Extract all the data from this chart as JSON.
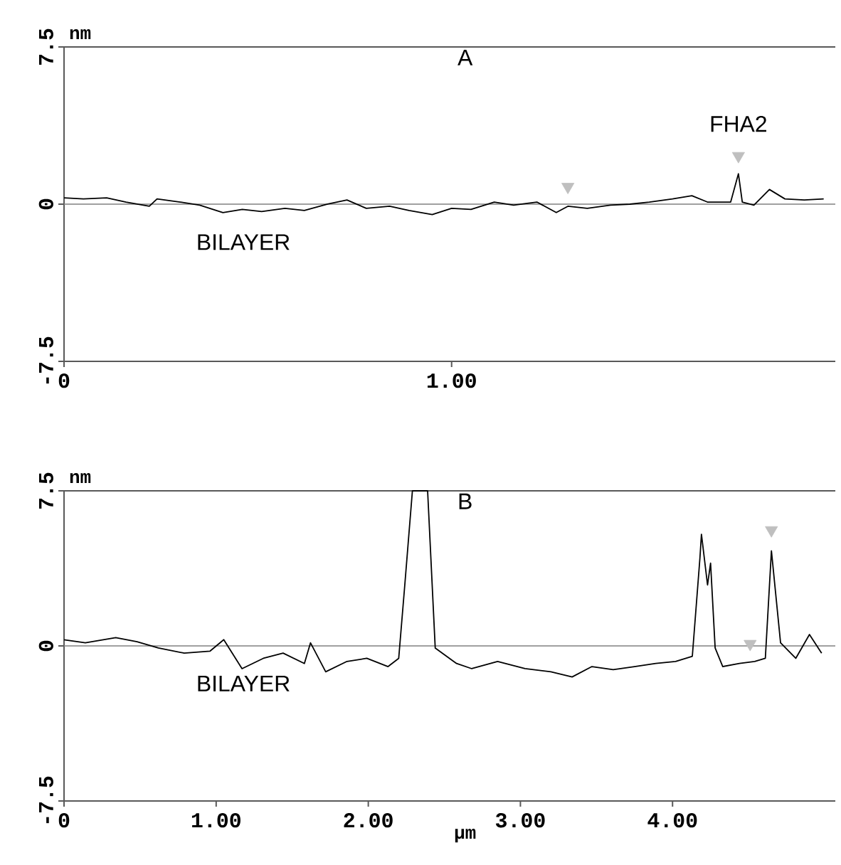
{
  "chart_data": [
    {
      "type": "line",
      "title": "A",
      "ylabel": "nm",
      "xlim": [
        0,
        1.99
      ],
      "ylim": [
        -7.5,
        7.5
      ],
      "xticks": [
        0,
        {
          "value": 1,
          "label": "1.00"
        }
      ],
      "yticks": [
        -7.5,
        0,
        7.5
      ],
      "grid": false,
      "ref_lines": [
        {
          "axis": "y",
          "value": 0,
          "color": "#808080"
        }
      ],
      "annotations": [
        {
          "text": "FHA2",
          "x": 1.74,
          "y": 1.45
        },
        "BILAYER"
      ],
      "series": [
        {
          "color": "#000000",
          "x": [
            0,
            0.05,
            0.11,
            0.16,
            0.22,
            0.24,
            0.3,
            0.35,
            0.41,
            0.46,
            0.51,
            0.57,
            0.62,
            0.68,
            0.73,
            0.78,
            0.84,
            0.89,
            0.95,
            1.0,
            1.05,
            1.11,
            1.16,
            1.22,
            1.27,
            1.3,
            1.35,
            1.41,
            1.46,
            1.51,
            1.57,
            1.62,
            1.66,
            1.72,
            1.74,
            1.75,
            1.78,
            1.82,
            1.86,
            1.91,
            1.96
          ],
          "values": [
            0.3,
            0.25,
            0.3,
            0.1,
            -0.1,
            0.25,
            0.1,
            -0.05,
            -0.4,
            -0.25,
            -0.35,
            -0.2,
            -0.3,
            0,
            0.2,
            -0.2,
            -0.1,
            -0.3,
            -0.5,
            -0.2,
            -0.25,
            0.1,
            -0.05,
            0.1,
            -0.4,
            -0.1,
            -0.2,
            -0.05,
            0,
            0.1,
            0.25,
            0.4,
            0.1,
            0.1,
            1.45,
            0.1,
            -0.05,
            0.7,
            0.25,
            0.2,
            0.25
          ]
        },
        {
          "type": "scatter",
          "color": "#bfbfbf",
          "marker": "triangle",
          "x": [
            1.3,
            1.74
          ],
          "values": [
            0.83,
            2.3
          ]
        }
      ]
    },
    {
      "type": "line",
      "title": "B",
      "xlabel": "μm",
      "ylabel": "nm",
      "xlim": [
        0,
        5.07
      ],
      "ylim": [
        -7.5,
        7.5
      ],
      "xticks": [
        0,
        {
          "value": 1,
          "label": "1.00"
        },
        {
          "value": 2,
          "label": "2.00"
        },
        {
          "value": 3,
          "label": "3.00"
        },
        {
          "value": 4,
          "label": "4.00"
        }
      ],
      "yticks": [
        -7.5,
        0,
        7.5
      ],
      "grid": false,
      "ref_lines": [
        {
          "axis": "y",
          "value": 0,
          "color": "#808080"
        }
      ],
      "annotations": [
        "BILAYER"
      ],
      "series": [
        {
          "color": "#000000",
          "x": [
            0,
            0.14,
            0.34,
            0.48,
            0.62,
            0.79,
            0.96,
            1.05,
            1.17,
            1.31,
            1.44,
            1.58,
            1.62,
            1.72,
            1.86,
            1.99,
            2.13,
            2.2,
            2.24,
            2.29,
            2.39,
            2.44,
            2.58,
            2.68,
            2.85,
            3.03,
            3.2,
            3.34,
            3.47,
            3.61,
            3.75,
            3.89,
            4.02,
            4.13,
            4.18,
            4.19,
            4.23,
            4.25,
            4.28,
            4.33,
            4.44,
            4.54,
            4.61,
            4.65,
            4.71,
            4.81,
            4.9,
            4.98
          ],
          "values": [
            0.3,
            0.15,
            0.4,
            0.2,
            -0.1,
            -0.35,
            -0.25,
            0.3,
            -1.1,
            -0.6,
            -0.35,
            -0.85,
            0.15,
            -1.25,
            -0.75,
            -0.6,
            -1.0,
            -0.6,
            2.95,
            7.5,
            7.5,
            -0.1,
            -0.85,
            -1.1,
            -0.75,
            -1.1,
            -1.25,
            -1.5,
            -1.0,
            -1.15,
            -1.0,
            -0.85,
            -0.75,
            -0.5,
            4.25,
            5.4,
            2.95,
            4.0,
            -0.1,
            -1.0,
            -0.85,
            -0.75,
            -0.6,
            4.6,
            0.15,
            -0.6,
            0.55,
            -0.35
          ]
        },
        {
          "type": "scatter",
          "color": "#bfbfbf",
          "marker": "triangle",
          "x": [
            4.51,
            4.65
          ],
          "values": [
            0.1,
            5.6
          ]
        }
      ]
    }
  ]
}
